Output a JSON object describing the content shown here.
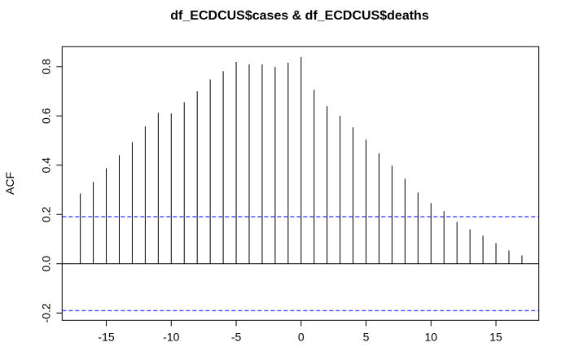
{
  "chart_data": {
    "type": "bar",
    "title": "df_ECDCUS$cases & df_ECDCUS$deaths",
    "xlabel": "",
    "ylabel": "ACF",
    "xlim": [
      -18.4,
      18.3
    ],
    "ylim": [
      -0.23,
      0.881
    ],
    "xticks": [
      -15,
      -10,
      -5,
      0,
      5,
      10,
      15
    ],
    "yticks": [
      -0.2,
      0.0,
      0.2,
      0.4,
      0.6,
      0.8
    ],
    "ytick_labels": [
      "-0.2",
      "0.0",
      "0.2",
      "0.4",
      "0.6",
      "0.8"
    ],
    "xtick_labels": [
      "-15",
      "-10",
      "-5",
      "0",
      "5",
      "10",
      "15"
    ],
    "lags": [
      -17,
      -16,
      -15,
      -14,
      -13,
      -12,
      -11,
      -10,
      -9,
      -8,
      -7,
      -6,
      -5,
      -4,
      -3,
      -2,
      -1,
      0,
      1,
      2,
      3,
      4,
      5,
      6,
      7,
      8,
      9,
      10,
      11,
      12,
      13,
      14,
      15,
      16,
      17
    ],
    "values": [
      0.285,
      0.332,
      0.388,
      0.441,
      0.494,
      0.557,
      0.613,
      0.61,
      0.656,
      0.7,
      0.748,
      0.782,
      0.819,
      0.809,
      0.809,
      0.799,
      0.816,
      0.839,
      0.706,
      0.64,
      0.6,
      0.554,
      0.504,
      0.448,
      0.398,
      0.345,
      0.289,
      0.246,
      0.213,
      0.17,
      0.14,
      0.114,
      0.084,
      0.054,
      0.034
    ],
    "confidence_bounds": [
      0.191,
      -0.19
    ],
    "ci_color": "#0000ff",
    "grid": false
  }
}
